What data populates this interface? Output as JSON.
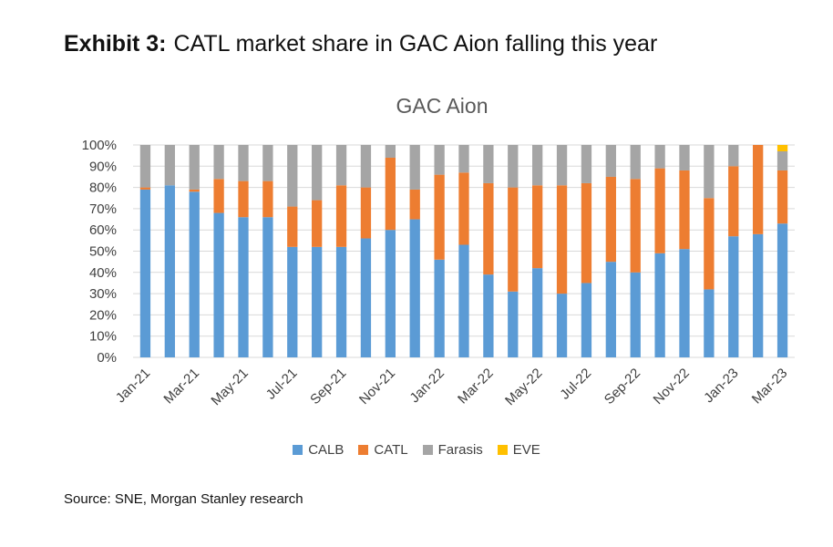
{
  "exhibit": {
    "label": "Exhibit 3:",
    "title": "CATL market share in GAC Aion falling this year"
  },
  "source": "Source: SNE, Morgan Stanley research",
  "chart_data": {
    "type": "bar",
    "stacked": true,
    "title": "GAC Aion",
    "xlabel": "",
    "ylabel": "",
    "ylim": [
      0,
      100
    ],
    "yticks": [
      "0%",
      "10%",
      "20%",
      "30%",
      "40%",
      "50%",
      "60%",
      "70%",
      "80%",
      "90%",
      "100%"
    ],
    "categories": [
      "Jan-21",
      "Feb-21",
      "Mar-21",
      "Apr-21",
      "May-21",
      "Jun-21",
      "Jul-21",
      "Aug-21",
      "Sep-21",
      "Oct-21",
      "Nov-21",
      "Dec-21",
      "Jan-22",
      "Feb-22",
      "Mar-22",
      "Apr-22",
      "May-22",
      "Jun-22",
      "Jul-22",
      "Aug-22",
      "Sep-22",
      "Oct-22",
      "Nov-22",
      "Dec-22",
      "Jan-23",
      "Feb-23",
      "Mar-23"
    ],
    "x_tick_labels": [
      "Jan-21",
      "Mar-21",
      "May-21",
      "Jul-21",
      "Sep-21",
      "Nov-21",
      "Jan-22",
      "Mar-22",
      "May-22",
      "Jul-22",
      "Sep-22",
      "Nov-22",
      "Jan-23",
      "Mar-23"
    ],
    "series": [
      {
        "name": "CALB",
        "color": "#5B9BD5",
        "values": [
          79,
          81,
          78,
          68,
          66,
          66,
          52,
          52,
          52,
          56,
          60,
          65,
          46,
          53,
          39,
          31,
          42,
          30,
          35,
          45,
          40,
          49,
          51,
          32,
          57,
          58,
          63
        ]
      },
      {
        "name": "CATL",
        "color": "#ED7D31",
        "values": [
          1,
          0,
          1,
          16,
          17,
          17,
          19,
          22,
          29,
          24,
          34,
          14,
          40,
          34,
          43,
          49,
          39,
          51,
          47,
          40,
          44,
          40,
          37,
          43,
          33,
          42,
          25
        ]
      },
      {
        "name": "Farasis",
        "color": "#A5A5A5",
        "values": [
          20,
          19,
          21,
          16,
          17,
          17,
          29,
          26,
          19,
          20,
          6,
          21,
          14,
          13,
          18,
          20,
          19,
          19,
          18,
          15,
          16,
          11,
          12,
          25,
          10,
          0,
          9
        ]
      },
      {
        "name": "EVE",
        "color": "#FFC000",
        "values": [
          0,
          0,
          0,
          0,
          0,
          0,
          0,
          0,
          0,
          0,
          0,
          0,
          0,
          0,
          0,
          0,
          0,
          0,
          0,
          0,
          0,
          0,
          0,
          0,
          0,
          0,
          3
        ]
      }
    ],
    "grid": "horizontal",
    "legend_position": "bottom"
  }
}
